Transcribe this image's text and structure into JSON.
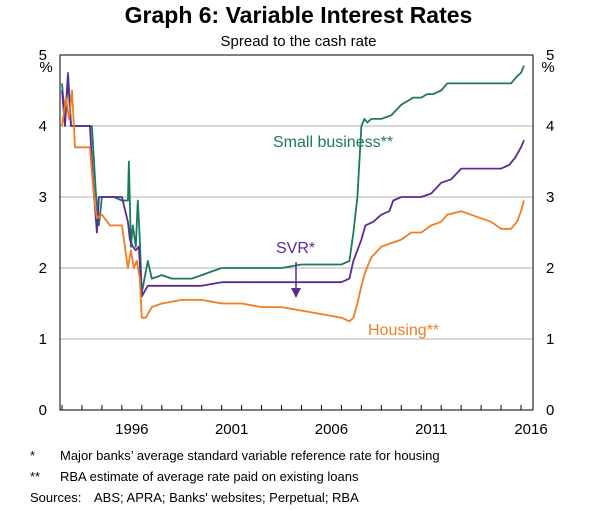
{
  "chart_data": {
    "type": "line",
    "title": "Graph 6: Variable Interest Rates",
    "subtitle": "Spread to the cash rate",
    "y_unit_left": "%",
    "y_unit_right": "%",
    "ylim": [
      0,
      5
    ],
    "yticks": [
      "0",
      "1",
      "2",
      "3",
      "4",
      "5"
    ],
    "xlim": [
      1992.9,
      2016.6
    ],
    "xticks": [
      {
        "label": "1996",
        "value": 1996
      },
      {
        "label": "2001",
        "value": 2001
      },
      {
        "label": "2006",
        "value": 2006
      },
      {
        "label": "2011",
        "value": 2011
      },
      {
        "label": "2016",
        "value": 2016
      }
    ],
    "grid": true,
    "series": [
      {
        "name": "Small business**",
        "color": "#1a7a5e",
        "x": [
          1993.0,
          1993.15,
          1993.3,
          1993.45,
          1993.6,
          1993.75,
          1993.9,
          1994.1,
          1994.5,
          1994.7,
          1994.85,
          1995.0,
          1995.3,
          1995.6,
          1996.0,
          1996.3,
          1996.35,
          1996.45,
          1996.55,
          1996.7,
          1996.8,
          1996.9,
          1997.0,
          1997.3,
          1997.5,
          1998.0,
          1998.5,
          1999.0,
          1999.5,
          2000.0,
          2000.5,
          2001.0,
          2001.5,
          2002.0,
          2003.0,
          2004.0,
          2005.0,
          2006.0,
          2007.0,
          2007.4,
          2007.6,
          2007.8,
          2008.0,
          2008.15,
          2008.3,
          2008.5,
          2008.8,
          2009.0,
          2009.5,
          2010.0,
          2010.3,
          2010.6,
          2011.0,
          2011.3,
          2011.6,
          2012.0,
          2012.3,
          2013.0,
          2014.0,
          2015.0,
          2015.5,
          2015.8,
          2016.0,
          2016.15
        ],
        "values": [
          4.6,
          4.1,
          4.75,
          4.0,
          4.0,
          4.0,
          4.0,
          4.0,
          4.0,
          3.05,
          2.6,
          3.0,
          3.0,
          3.0,
          2.95,
          2.95,
          3.5,
          2.3,
          2.6,
          2.3,
          2.95,
          2.4,
          1.65,
          2.1,
          1.85,
          1.9,
          1.85,
          1.85,
          1.85,
          1.9,
          1.95,
          2.0,
          2.0,
          2.0,
          2.0,
          2.0,
          2.05,
          2.05,
          2.05,
          2.1,
          2.5,
          3.0,
          4.0,
          4.1,
          4.05,
          4.1,
          4.1,
          4.1,
          4.15,
          4.3,
          4.35,
          4.4,
          4.4,
          4.45,
          4.45,
          4.5,
          4.6,
          4.6,
          4.6,
          4.6,
          4.6,
          4.7,
          4.75,
          4.85
        ]
      },
      {
        "name": "SVR*",
        "color": "#5b2a96",
        "x": [
          1993.0,
          1993.15,
          1993.3,
          1993.45,
          1993.6,
          1993.75,
          1994.4,
          1994.6,
          1994.75,
          1994.85,
          1995.0,
          1995.5,
          1996.0,
          1996.3,
          1996.4,
          1996.55,
          1996.7,
          1996.85,
          1997.0,
          1997.3,
          1997.6,
          1998.0,
          1999.0,
          2000.0,
          2001.0,
          2002.0,
          2003.0,
          2004.0,
          2005.0,
          2006.0,
          2007.0,
          2007.4,
          2007.6,
          2007.8,
          2008.0,
          2008.2,
          2008.6,
          2009.0,
          2009.4,
          2009.6,
          2010.0,
          2010.5,
          2011.0,
          2011.5,
          2012.0,
          2012.5,
          2013.0,
          2014.0,
          2015.0,
          2015.4,
          2015.7,
          2016.0,
          2016.15
        ],
        "values": [
          4.5,
          4.0,
          4.7,
          4.0,
          4.0,
          4.0,
          4.0,
          3.05,
          2.5,
          3.0,
          3.0,
          3.0,
          3.0,
          2.65,
          2.4,
          2.3,
          2.25,
          2.3,
          1.6,
          1.75,
          1.75,
          1.75,
          1.75,
          1.75,
          1.8,
          1.8,
          1.8,
          1.8,
          1.8,
          1.8,
          1.8,
          1.85,
          2.1,
          2.25,
          2.4,
          2.6,
          2.65,
          2.75,
          2.8,
          2.95,
          3.0,
          3.0,
          3.0,
          3.05,
          3.2,
          3.25,
          3.4,
          3.4,
          3.4,
          3.45,
          3.55,
          3.7,
          3.8
        ]
      },
      {
        "name": "Housing**",
        "color": "#f07d24",
        "x": [
          1993.0,
          1993.2,
          1993.35,
          1993.5,
          1993.65,
          1994.4,
          1994.6,
          1994.75,
          1995.0,
          1995.4,
          1995.8,
          1996.0,
          1996.3,
          1996.45,
          1996.6,
          1996.75,
          1996.9,
          1997.0,
          1997.2,
          1997.5,
          1998.0,
          1999.0,
          2000.0,
          2001.0,
          2002.0,
          2003.0,
          2004.0,
          2005.0,
          2006.0,
          2007.0,
          2007.4,
          2007.6,
          2007.8,
          2008.0,
          2008.2,
          2008.5,
          2009.0,
          2009.5,
          2010.0,
          2010.5,
          2011.0,
          2011.5,
          2012.0,
          2012.3,
          2013.0,
          2014.0,
          2014.5,
          2015.0,
          2015.5,
          2015.8,
          2016.0,
          2016.15
        ],
        "values": [
          4.0,
          4.4,
          4.1,
          4.5,
          3.7,
          3.7,
          3.0,
          2.7,
          2.75,
          2.6,
          2.6,
          2.6,
          2.0,
          2.25,
          2.0,
          2.1,
          1.85,
          1.3,
          1.3,
          1.45,
          1.5,
          1.55,
          1.55,
          1.5,
          1.5,
          1.45,
          1.45,
          1.4,
          1.35,
          1.3,
          1.25,
          1.3,
          1.5,
          1.75,
          1.95,
          2.15,
          2.3,
          2.35,
          2.4,
          2.5,
          2.5,
          2.6,
          2.65,
          2.75,
          2.8,
          2.7,
          2.65,
          2.55,
          2.55,
          2.65,
          2.8,
          2.95
        ]
      }
    ],
    "annotations": [
      {
        "text": "Small business**",
        "series": "Small business**"
      },
      {
        "text": "SVR*",
        "series": "SVR*"
      },
      {
        "text": "Housing**",
        "series": "Housing**"
      }
    ]
  },
  "footnotes": [
    {
      "mark": "*",
      "text": "Major banks’ average standard variable reference rate for housing"
    },
    {
      "mark": "**",
      "text": "RBA estimate of average rate paid on existing loans"
    }
  ],
  "sources": {
    "label": "Sources:",
    "text": "ABS; APRA; Banks' websites; Perpetual; RBA"
  }
}
